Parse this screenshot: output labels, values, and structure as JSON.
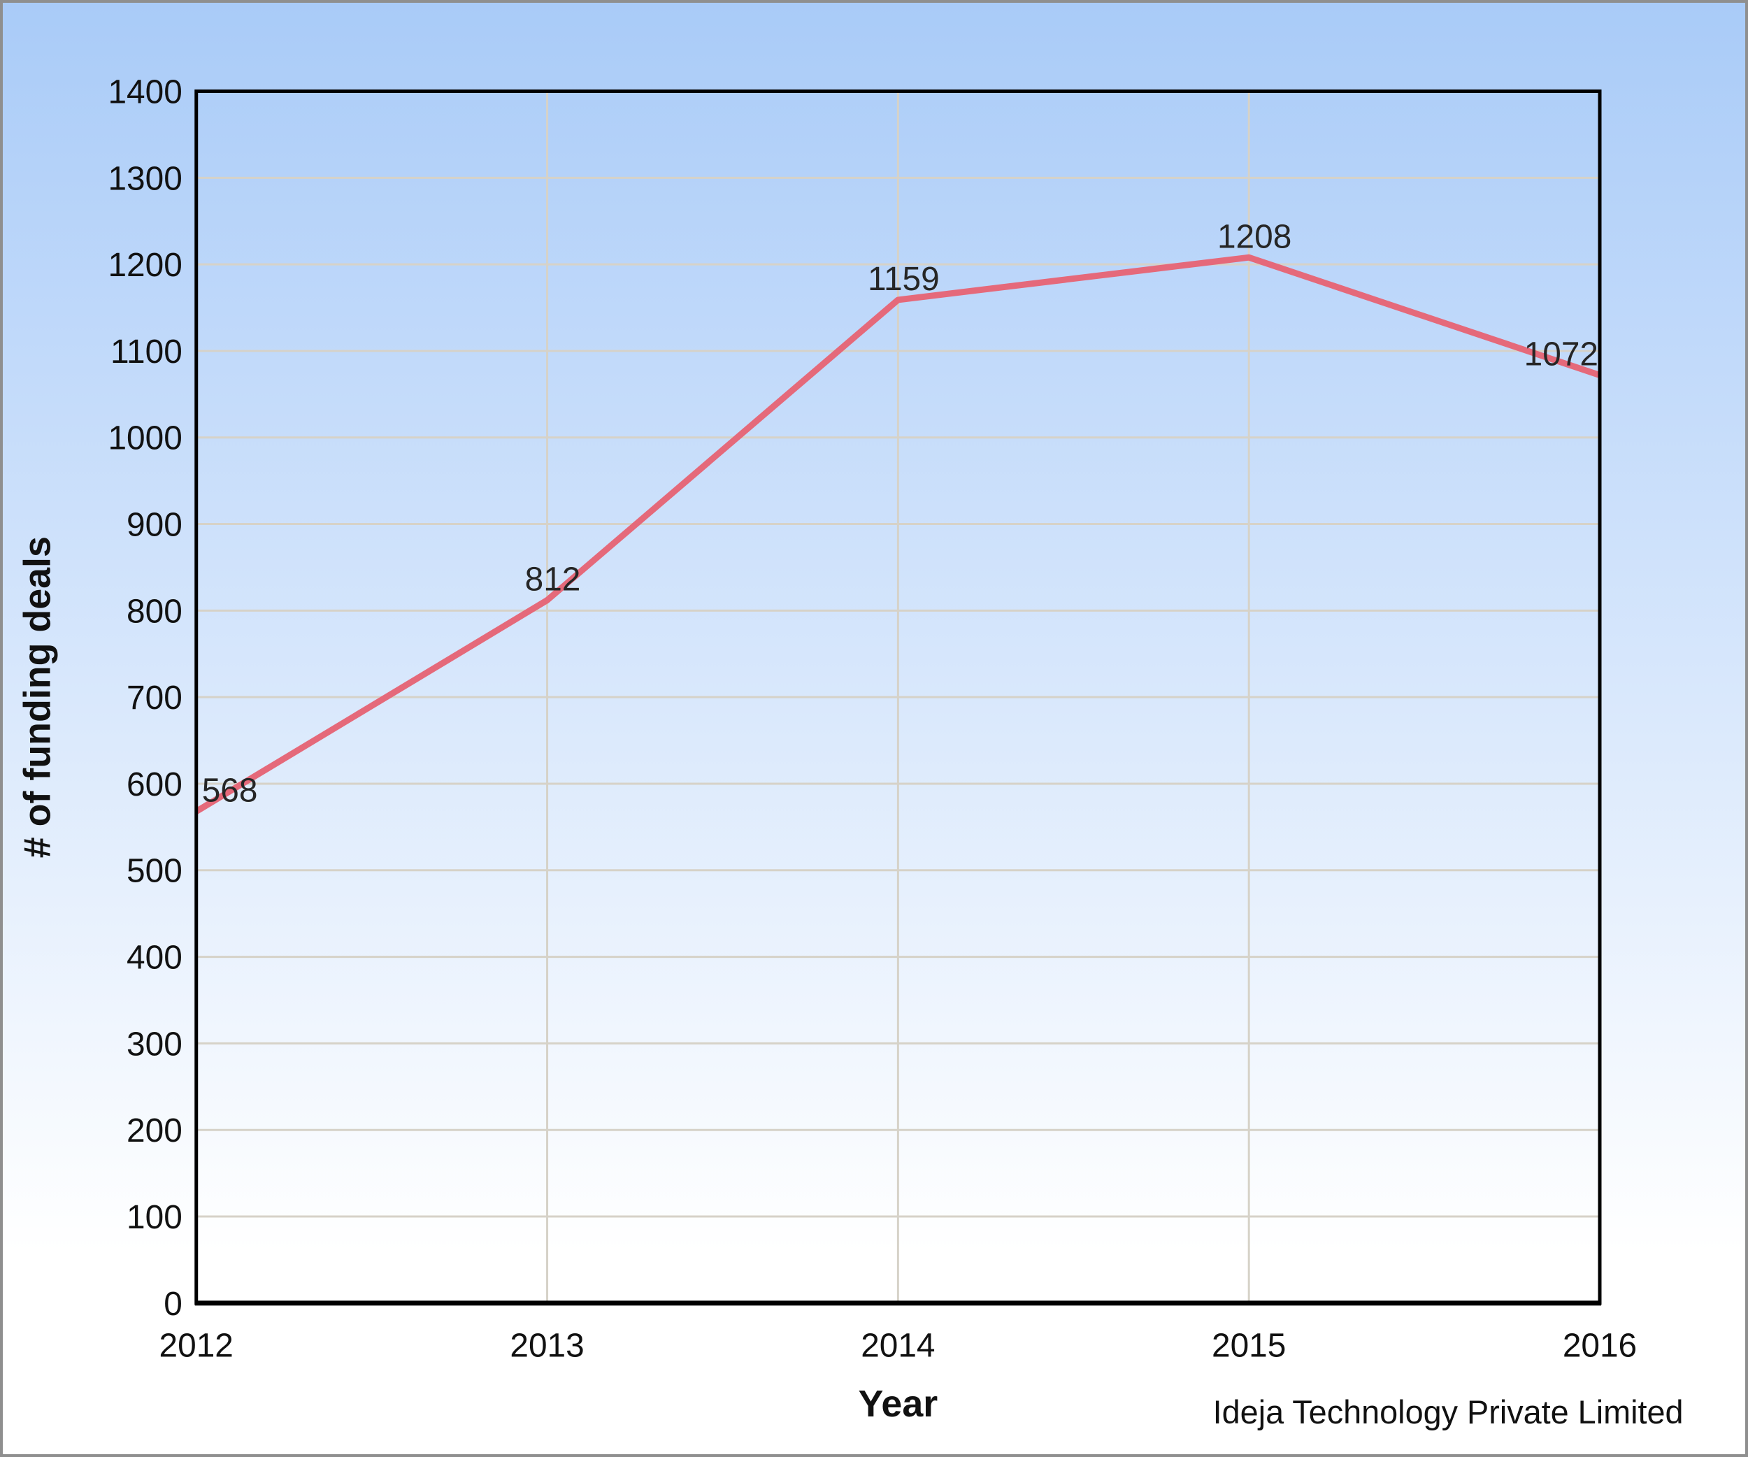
{
  "chart_data": {
    "type": "line",
    "title": "",
    "categories": [
      "2012",
      "2013",
      "2014",
      "2015",
      "2016"
    ],
    "series": [
      {
        "name": "# of funding deals",
        "values": [
          568,
          812,
          1159,
          1208,
          1072
        ]
      }
    ],
    "data_labels": [
      "568",
      "812",
      "1159",
      "1208",
      "1072"
    ],
    "xlabel": "Year",
    "ylabel": "# of funding deals",
    "ylim": [
      0,
      1400
    ],
    "yticks": [
      0,
      100,
      200,
      300,
      400,
      500,
      600,
      700,
      800,
      900,
      1000,
      1100,
      1200,
      1300,
      1400
    ],
    "grid": true,
    "legend_position": "none",
    "markers": false,
    "colors": {
      "line": "#e5697a",
      "gridline": "#d6d2c8",
      "axis": "#000000",
      "tick_text": "#111111",
      "data_label_text": "#262626",
      "background_top": "#a9cbf8",
      "background_bottom": "#ffffff",
      "frame_border": "#8f8f8f"
    },
    "source_text": "Ideja Technology Private Limited"
  }
}
